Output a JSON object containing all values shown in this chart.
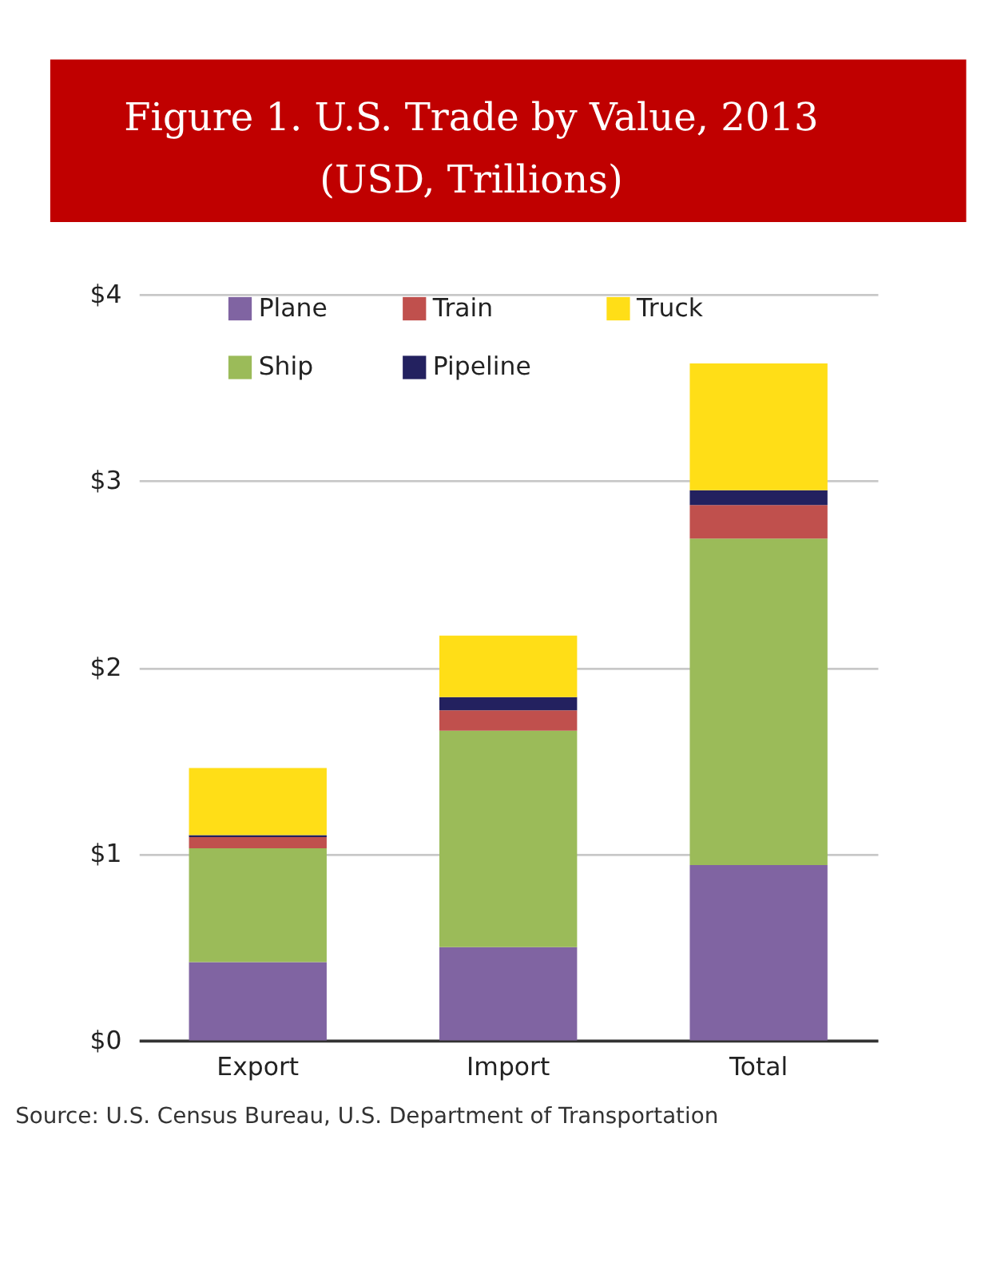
{
  "chart_data": {
    "type": "bar",
    "title": "Figure 1. U.S. Trade by Value, 2013",
    "subtitle": "(USD, Trillions)",
    "categories": [
      "Export",
      "Import",
      "Total"
    ],
    "stacked": true,
    "series": [
      {
        "name": "Plane",
        "color": "#8064a2",
        "values": [
          0.42,
          0.5,
          0.94
        ]
      },
      {
        "name": "Ship",
        "color": "#9bbb59",
        "values": [
          0.61,
          1.16,
          1.75
        ]
      },
      {
        "name": "Train",
        "color": "#c0504d",
        "values": [
          0.06,
          0.11,
          0.18
        ]
      },
      {
        "name": "Pipeline",
        "color": "#23215f",
        "values": [
          0.01,
          0.07,
          0.08
        ]
      },
      {
        "name": "Truck",
        "color": "#ffde17",
        "values": [
          0.36,
          0.33,
          0.68
        ]
      }
    ],
    "ylim": [
      0,
      4
    ],
    "yticks": [
      {
        "value": 0,
        "label": "$0"
      },
      {
        "value": 1,
        "label": "$1"
      },
      {
        "value": 2,
        "label": "$2"
      },
      {
        "value": 3,
        "label": "$3"
      },
      {
        "value": 4,
        "label": "$4"
      }
    ],
    "grid": "y",
    "legend": "top left",
    "annotations": [
      "Source: U.S. Census Bureau, U.S. Department of Transportation"
    ]
  }
}
